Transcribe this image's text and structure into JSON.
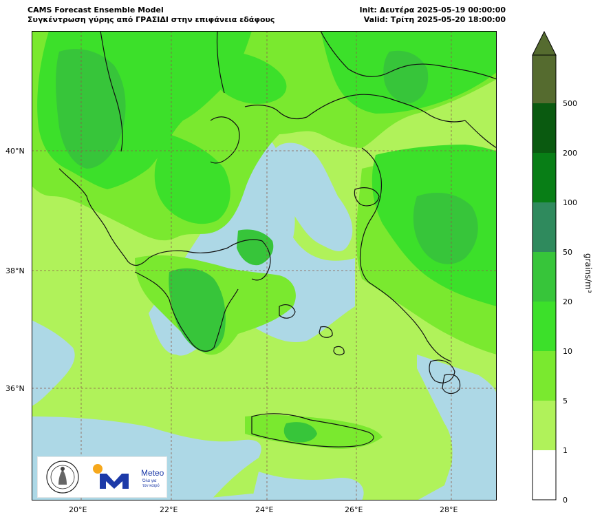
{
  "header": {
    "title_line1": "CAMS Forecast Ensemble Model",
    "title_line2": "Συγκέντρωση γύρης από ΓΡΑΣΙΔΙ στην επιφάνεια εδάφους",
    "init": "Init: Δευτέρα 2025-05-19 00:00:00",
    "valid": "Valid: Τρίτη 2025-05-20 18:00:00"
  },
  "map": {
    "lat_labels": [
      "40°N",
      "38°N",
      "36°N"
    ],
    "lon_labels": [
      "20°E",
      "22°E",
      "24°E",
      "26°E",
      "28°E"
    ]
  },
  "colorbar": {
    "unit": "grains/m³",
    "ticks": [
      "500",
      "200",
      "100",
      "50",
      "20",
      "10",
      "5",
      "1",
      "0"
    ],
    "colors": {
      "0-1": "#ffffff",
      "1-5": "#b0f25a",
      "5-10": "#7ae92f",
      "10-20": "#3ce02a",
      "20-50": "#37c53a",
      "50-100": "#2f8a5d",
      "100-200": "#119a21",
      "200-500": "#087e16",
      "500+": "#0a5a10",
      "extend": "#556b2f"
    }
  },
  "logos": {
    "meteo_name": "Meteo",
    "meteo_tagline_1": "Όλα για",
    "meteo_tagline_2": "τον καιρό"
  },
  "colors": {
    "sea": "#add8e6",
    "grid": "#8b5a4a"
  }
}
